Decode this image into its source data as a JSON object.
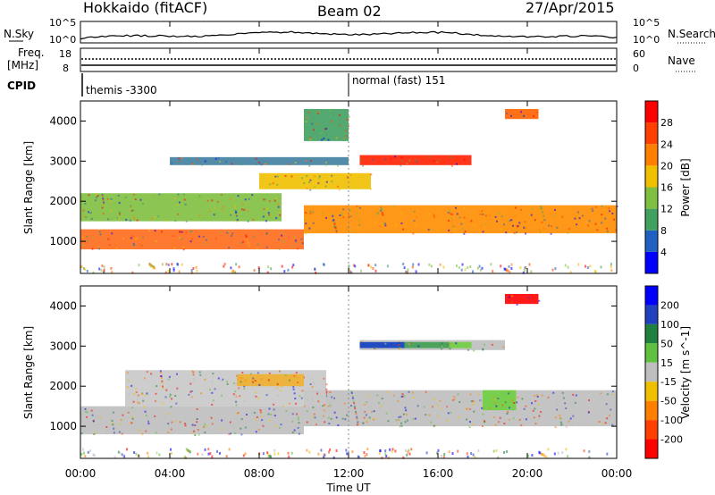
{
  "header": {
    "station": "Hokkaido (fitACF)",
    "beam": "Beam 02",
    "date": "27/Apr/2015"
  },
  "top_panel": {
    "left_label": "N.Sky",
    "right_label": "N.Search",
    "y_ticks_left": [
      "10^5",
      "10^0"
    ],
    "y_ticks_right": [
      "10^5",
      "10^0"
    ]
  },
  "freq_panel": {
    "left_label_1": "Freq.",
    "left_label_2": "[MHz]",
    "right_label": "Nave",
    "y_ticks_left": [
      "18",
      "8"
    ],
    "y_ticks_right": [
      "60",
      "0"
    ]
  },
  "cpid": {
    "label": "CPID",
    "modes": [
      {
        "text": "themis -3300",
        "start_hour": 0
      },
      {
        "text": "normal (fast) 151",
        "start_hour": 12
      }
    ]
  },
  "x_axis": {
    "title": "Time UT",
    "ticks": [
      "00:00",
      "04:00",
      "08:00",
      "12:00",
      "16:00",
      "20:00",
      "00:00"
    ]
  },
  "chart_data": [
    {
      "type": "heatmap",
      "panel": "power",
      "ylabel": "Slant Range [km]",
      "ylim": [
        200,
        4500
      ],
      "y_ticks": [
        "1000",
        "2000",
        "3000",
        "4000"
      ],
      "xlim_hours": [
        0,
        24
      ],
      "colorbar": {
        "title": "Power [dB]",
        "ticks": [
          "4",
          "8",
          "12",
          "16",
          "20",
          "24",
          "28"
        ],
        "colors": [
          "#0000ff",
          "#2060c0",
          "#40a060",
          "#80c040",
          "#f0c000",
          "#ff8000",
          "#ff4000",
          "#ff0000"
        ]
      },
      "bands": [
        {
          "t0": 0,
          "t1": 10,
          "r0": 800,
          "r1": 1300,
          "color": "#ff6a1a"
        },
        {
          "t0": 10,
          "t1": 24,
          "r0": 1200,
          "r1": 1900,
          "color": "#ff8c00"
        },
        {
          "t0": 0,
          "t1": 9,
          "r0": 1500,
          "r1": 2200,
          "color": "#7fbf3f"
        },
        {
          "t0": 12.5,
          "t1": 17.5,
          "r0": 2900,
          "r1": 3150,
          "color": "#ff2000"
        },
        {
          "t0": 8,
          "t1": 13,
          "r0": 2300,
          "r1": 2700,
          "color": "#f0c000"
        },
        {
          "t0": 4,
          "t1": 12,
          "r0": 2900,
          "r1": 3100,
          "color": "#4080a0"
        },
        {
          "t0": 19,
          "t1": 20.5,
          "r0": 4050,
          "r1": 4300,
          "color": "#ff6000"
        },
        {
          "t0": 10,
          "t1": 12,
          "r0": 3500,
          "r1": 4300,
          "color": "#40a060"
        }
      ]
    },
    {
      "type": "heatmap",
      "panel": "velocity",
      "ylabel": "Slant Range [km]",
      "ylim": [
        200,
        4500
      ],
      "y_ticks": [
        "1000",
        "2000",
        "3000",
        "4000"
      ],
      "xlim_hours": [
        0,
        24
      ],
      "colorbar": {
        "title": "Velocity [m s^-1]",
        "ticks": [
          "200",
          "100",
          "50",
          "15",
          "-15",
          "-50",
          "-100",
          "-200"
        ],
        "colors": [
          "#0000ff",
          "#2040c0",
          "#208040",
          "#60c040",
          "#bebebe",
          "#f0c000",
          "#ff8000",
          "#ff4000",
          "#ff0000"
        ]
      },
      "bands": [
        {
          "t0": 0,
          "t1": 10,
          "r0": 800,
          "r1": 1500,
          "color": "#bebebe"
        },
        {
          "t0": 10,
          "t1": 24,
          "r0": 1000,
          "r1": 1900,
          "color": "#bebebe"
        },
        {
          "t0": 2,
          "t1": 11,
          "r0": 1500,
          "r1": 2400,
          "color": "#c8c8c8"
        },
        {
          "t0": 12.5,
          "t1": 19,
          "r0": 2900,
          "r1": 3150,
          "color": "#bebebe"
        },
        {
          "t0": 12.5,
          "t1": 14.5,
          "r0": 2950,
          "r1": 3100,
          "color": "#1040c0"
        },
        {
          "t0": 14.5,
          "t1": 16.5,
          "r0": 2950,
          "r1": 3100,
          "color": "#40a050"
        },
        {
          "t0": 16.5,
          "t1": 17.5,
          "r0": 2950,
          "r1": 3100,
          "color": "#70d040"
        },
        {
          "t0": 19,
          "t1": 20.5,
          "r0": 4050,
          "r1": 4300,
          "color": "#ff0000"
        },
        {
          "t0": 7,
          "t1": 10,
          "r0": 2000,
          "r1": 2300,
          "color": "#f0b030"
        },
        {
          "t0": 18,
          "t1": 19.5,
          "r0": 1400,
          "r1": 1900,
          "color": "#70d040"
        }
      ]
    }
  ]
}
